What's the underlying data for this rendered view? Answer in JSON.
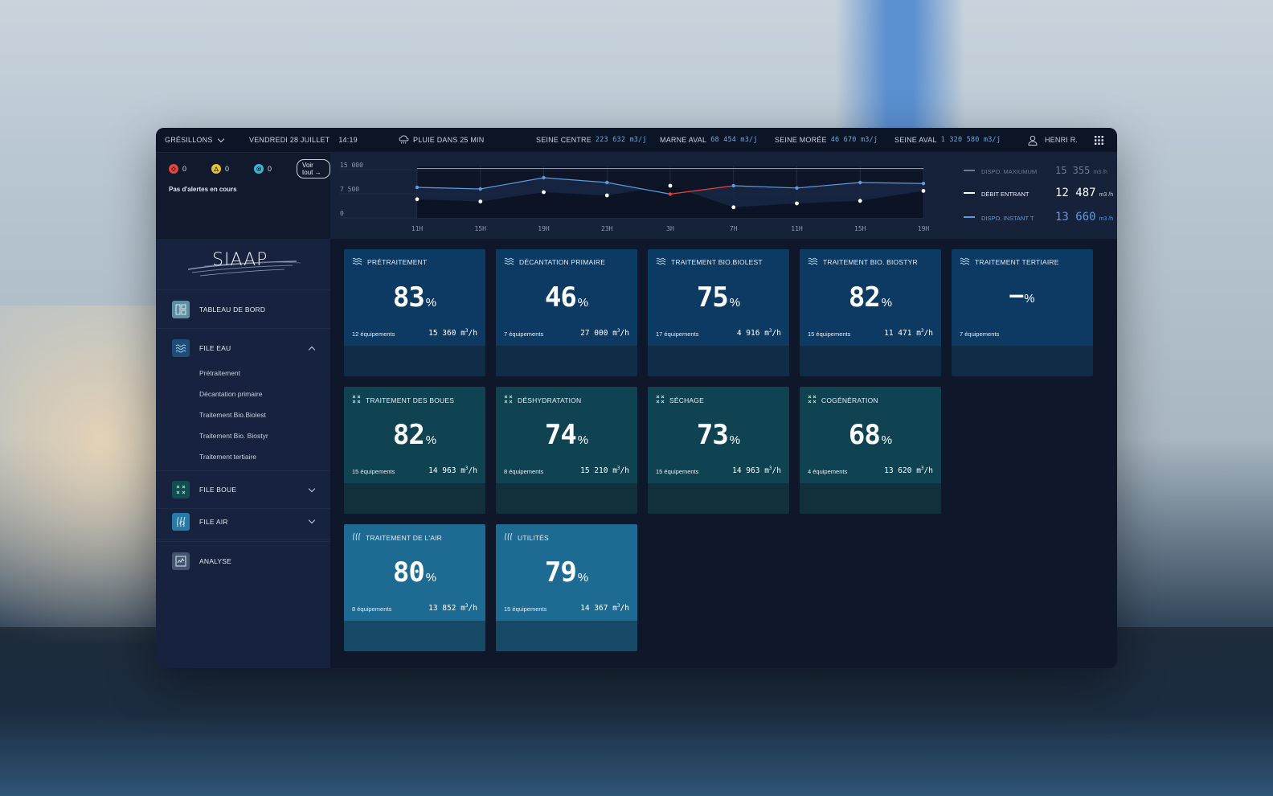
{
  "topbar": {
    "site": "GRÉSILLONS",
    "date": "VENDREDI 28 JUILLET",
    "time": "14:19",
    "weather": "PLUIE DANS 25 MIN",
    "stations": [
      {
        "name": "SEINE CENTRE",
        "value": "223 632",
        "unit": "m3/j"
      },
      {
        "name": "MARNE AVAL",
        "value": "68 454",
        "unit": "m3/j"
      },
      {
        "name": "SEINE MORÉE",
        "value": "46 670",
        "unit": "m3/j"
      },
      {
        "name": "SEINE AVAL",
        "value": "1 320 580",
        "unit": "m3/j"
      }
    ],
    "user": "HENRI R."
  },
  "alerts": {
    "red_count": "0",
    "yellow_count": "0",
    "blue_count": "0",
    "view_all": "Voir tout →",
    "message": "Pas d'alertes en cours"
  },
  "colors": {
    "red": "#e2463a",
    "yellow": "#e5c232",
    "cyan": "#3bb6d6",
    "line_blue": "#5d9ae0",
    "anomaly": "#e2463a"
  },
  "chart_data": {
    "type": "line",
    "x": [
      "11H",
      "15H",
      "19H",
      "23H",
      "3H",
      "7H",
      "11H",
      "15H",
      "19H"
    ],
    "y_ticks": [
      "15 000",
      "7 500",
      "0"
    ],
    "ylim": [
      0,
      16000
    ],
    "series": [
      {
        "name": "DISPO. INSTANT T",
        "values": [
          9500,
          9000,
          12500,
          11000,
          7400,
          10000,
          9300,
          11000,
          10700
        ]
      },
      {
        "name": "DÉBIT ENTRANT",
        "values": [
          5800,
          5100,
          8000,
          7000,
          10000,
          3300,
          4500,
          5300,
          8400
        ]
      }
    ],
    "max_line": 15355,
    "anomaly_segment": [
      3,
      4
    ]
  },
  "legend": [
    {
      "label": "DISPO. MAXIUMUM",
      "value": "15 355",
      "unit": "m3 /h",
      "color": "#6c7a93"
    },
    {
      "label": "DÉBIT ENTRANT",
      "value": "12 487",
      "unit": "m3 /h",
      "color": "#ffffff"
    },
    {
      "label": "DISPO. INSTANT T",
      "value": "13 660",
      "unit": "m3 /h",
      "color": "#5d9ae0"
    }
  ],
  "sidebar": {
    "logo": "SIAAP",
    "items": [
      {
        "label": "TABLEAU DE BORD",
        "icon": "dashboard-icon"
      },
      {
        "label": "FILE EAU",
        "icon": "water-waves-icon"
      },
      {
        "label": "FILE BOUE",
        "icon": "sludge-icon"
      },
      {
        "label": "FILE AIR",
        "icon": "air-icon"
      },
      {
        "label": "ANALYSE",
        "icon": "analysis-chart-icon"
      }
    ],
    "sub_items": [
      "Prétraitement",
      "Décantation primaire",
      "Traitement Bio.Biolest",
      "Traitement Bio. Biostyr",
      "Traitement tertiaire"
    ]
  },
  "cards": [
    {
      "title": "PRÉTRAITEMENT",
      "pct": "83",
      "eq": "12 équipements",
      "flow": "15 360",
      "icon": "water-waves-icon",
      "kind": "blue"
    },
    {
      "title": "DÉCANTATION PRIMAIRE",
      "pct": "46",
      "eq": "7 équipements",
      "flow": "27 000",
      "icon": "water-waves-icon",
      "kind": "blue"
    },
    {
      "title": "TRAITEMENT BIO.BIOLEST",
      "pct": "75",
      "eq": "17 équipements",
      "flow": "4 916",
      "icon": "water-waves-icon",
      "kind": "blue"
    },
    {
      "title": "TRAITEMENT BIO. BIOSTYR",
      "pct": "82",
      "eq": "15 équipements",
      "flow": "11 471",
      "icon": "water-waves-icon",
      "kind": "blue"
    },
    {
      "title": "TRAITEMENT TERTIAIRE",
      "pct": "—",
      "eq": "7 équipements",
      "flow": "",
      "icon": "water-waves-icon",
      "kind": "blue"
    },
    {
      "title": "TRAITEMENT DES BOUES",
      "pct": "82",
      "eq": "15 équipements",
      "flow": "14 963",
      "icon": "sludge-icon",
      "kind": "teal"
    },
    {
      "title": "DÉSHYDRATATION",
      "pct": "74",
      "eq": "8 équipements",
      "flow": "15 210",
      "icon": "sludge-icon",
      "kind": "teal"
    },
    {
      "title": "SÉCHAGE",
      "pct": "73",
      "eq": "15 équipements",
      "flow": "14 963",
      "icon": "sludge-icon",
      "kind": "teal"
    },
    {
      "title": "COGÉNÉRATION",
      "pct": "68",
      "eq": "4 équipements",
      "flow": "13 620",
      "icon": "sludge-icon",
      "kind": "teal"
    },
    {
      "title": "TRAITEMENT DE L'AIR",
      "pct": "80",
      "eq": "8 équipements",
      "flow": "13 852",
      "icon": "air-icon",
      "kind": "sky"
    },
    {
      "title": "UTILITÉS",
      "pct": "79",
      "eq": "15 équipements",
      "flow": "14 367",
      "icon": "air-icon",
      "kind": "sky"
    }
  ],
  "units": {
    "flow": "m",
    "flow_sup": "3",
    "flow_suffix": "/h",
    "pct": "%"
  }
}
